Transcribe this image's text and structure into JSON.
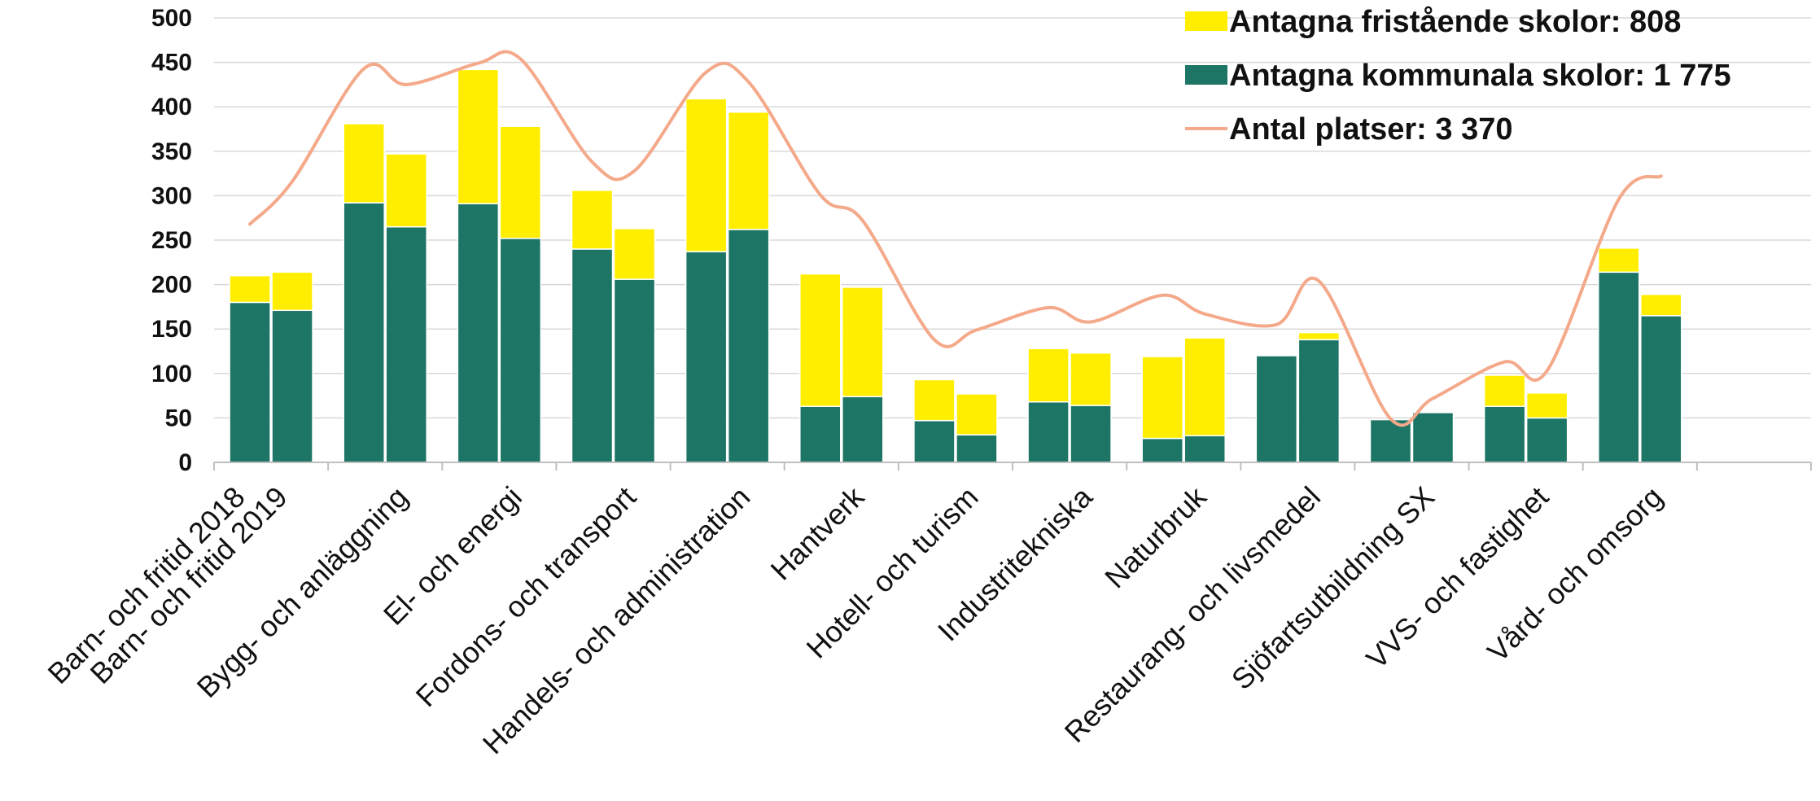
{
  "chart_data": {
    "type": "bar",
    "stacked": true,
    "title": "",
    "xlabel": "",
    "ylabel": "",
    "ylim": [
      0,
      500
    ],
    "yticks": [
      0,
      50,
      100,
      150,
      200,
      250,
      300,
      350,
      400,
      450,
      500
    ],
    "grid": true,
    "legend_position": "top-right",
    "colors": {
      "kommunala": "#1c7565",
      "fristaende": "#ffee00",
      "platser": "#f4a98a"
    },
    "bars": [
      {
        "kommunala": 180,
        "fristaende": 30
      },
      {
        "kommunala": 171,
        "fristaende": 43
      },
      {
        "kommunala": 292,
        "fristaende": 89
      },
      {
        "kommunala": 265,
        "fristaende": 82
      },
      {
        "kommunala": 291,
        "fristaende": 151
      },
      {
        "kommunala": 252,
        "fristaende": 126
      },
      {
        "kommunala": 240,
        "fristaende": 66
      },
      {
        "kommunala": 206,
        "fristaende": 57
      },
      {
        "kommunala": 237,
        "fristaende": 172
      },
      {
        "kommunala": 262,
        "fristaende": 132
      },
      {
        "kommunala": 63,
        "fristaende": 149
      },
      {
        "kommunala": 74,
        "fristaende": 123
      },
      {
        "kommunala": 47,
        "fristaende": 46
      },
      {
        "kommunala": 31,
        "fristaende": 46
      },
      {
        "kommunala": 68,
        "fristaende": 60
      },
      {
        "kommunala": 64,
        "fristaende": 59
      },
      {
        "kommunala": 27,
        "fristaende": 92
      },
      {
        "kommunala": 30,
        "fristaende": 110
      },
      {
        "kommunala": 120,
        "fristaende": 0
      },
      {
        "kommunala": 138,
        "fristaende": 8
      },
      {
        "kommunala": 48,
        "fristaende": 0
      },
      {
        "kommunala": 56,
        "fristaende": 0
      },
      {
        "kommunala": 63,
        "fristaende": 35
      },
      {
        "kommunala": 50,
        "fristaende": 28
      },
      {
        "kommunala": 214,
        "fristaende": 27
      },
      {
        "kommunala": 165,
        "fristaende": 24
      }
    ],
    "line_values": [
      268,
      316,
      443,
      425,
      449,
      454,
      338,
      328,
      439,
      428,
      301,
      272,
      138,
      149,
      174,
      158,
      188,
      167,
      155,
      204,
      49,
      72,
      113,
      103,
      296,
      322
    ],
    "categories": [
      "Barn- och fritid 2018",
      "Barn- och fritid 2019",
      "Bygg- och anläggning",
      "El- och energi",
      "Fordons- och transport",
      "Handels- och administration",
      "Hantverk",
      "Hotell- och turism",
      "Industritekniska",
      "Naturbruk",
      "Restaurang- och livsmedel",
      "Sjöfartsutbildning SX",
      "VVS- och fastighet",
      "Vård- och omsorg"
    ],
    "series": [
      {
        "name": "Antagna fristående skolor: 808",
        "key": "fristaende",
        "legend_icon": "swatch"
      },
      {
        "name": "Antagna kommunala skolor: 1 775",
        "key": "kommunala",
        "legend_icon": "swatch"
      },
      {
        "name": "Antal platser: 3 370",
        "key": "platser",
        "legend_icon": "line"
      }
    ]
  }
}
